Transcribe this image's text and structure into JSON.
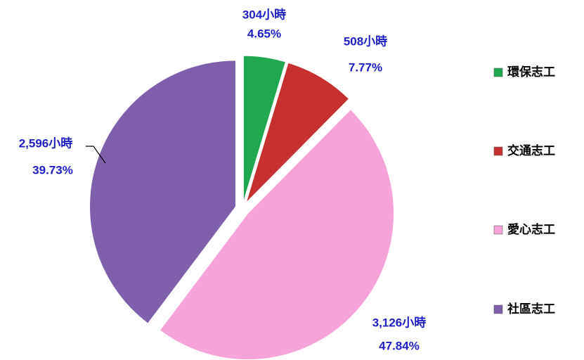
{
  "chart_data": {
    "type": "pie",
    "categories": [
      "環保志工",
      "交通志工",
      "愛心志工",
      "社區志工"
    ],
    "values": [
      304,
      508,
      3126,
      2596
    ],
    "value_labels": [
      "304小時",
      "508小時",
      "3,126小時",
      "2,596小時"
    ],
    "percentages": [
      4.65,
      7.77,
      47.84,
      39.73
    ],
    "percentage_labels": [
      "4.65%",
      "7.77%",
      "47.84%",
      "39.73%"
    ],
    "colors": [
      "#1fa84f",
      "#c6302e",
      "#f5a3d9",
      "#7f5fab"
    ],
    "legend": "right"
  }
}
